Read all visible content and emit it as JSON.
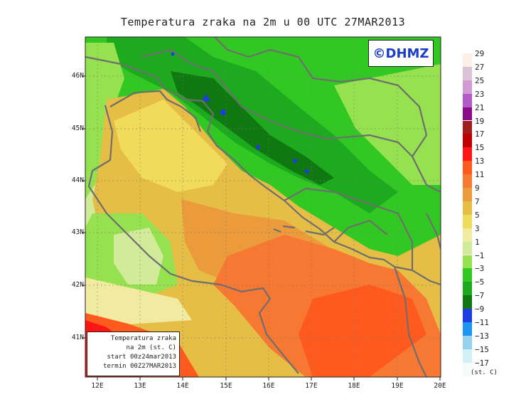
{
  "title": "Temperatura zraka na 2m u 00 UTC 27MAR2013",
  "copyright": "©DHMZ",
  "info": {
    "line1": "Temperatura zraka",
    "line2": "na 2m (st. C)",
    "line3": "start 00z24mar2013",
    "line4": "termin 00Z27MAR2013"
  },
  "lat_labels": [
    "46N",
    "45N",
    "44N",
    "43N",
    "42N",
    "41N"
  ],
  "lon_labels": [
    "12E",
    "13E",
    "14E",
    "15E",
    "16E",
    "17E",
    "18E",
    "19E",
    "20E"
  ],
  "legend": {
    "labels": [
      "29",
      "27",
      "25",
      "23",
      "21",
      "19",
      "17",
      "15",
      "13",
      "11",
      "9",
      "7",
      "5",
      "3",
      "1",
      "−1",
      "−3",
      "−5",
      "−7",
      "−9",
      "−11",
      "−13",
      "−15",
      "−17"
    ],
    "colors": [
      "#fbefe6",
      "#dcc2d6",
      "#d29ad2",
      "#b45ac8",
      "#8c0a8c",
      "#a01e1e",
      "#c00000",
      "#ff1414",
      "#ff5a1e",
      "#f77832",
      "#eb9b3c",
      "#e6be46",
      "#f0dc5a",
      "#f0eba0",
      "#d2eb9b",
      "#96e150",
      "#32c823",
      "#1eaa1e",
      "#107810",
      "#1e3ce6",
      "#1e96f0",
      "#96d2f0",
      "#d2f0f5",
      "#f5fafa"
    ],
    "unit": "(st. C)"
  }
}
